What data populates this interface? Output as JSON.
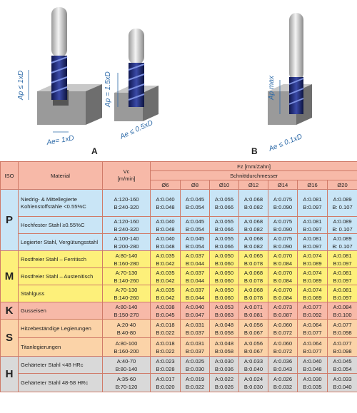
{
  "figure": {
    "label_a": "A",
    "label_b": "B",
    "tool1_ap": "Ap ≤ 1xD",
    "tool1_ae": "Ae= 1xD",
    "tool2_ap": "Ap = 1.5xD",
    "tool2_ae": "Ae ≤ 0.5xD",
    "tool3_ap": "Ap max",
    "tool3_ae": "Ae ≤ 0.1xD"
  },
  "table": {
    "iso_header": "ISO",
    "material_header": "Material",
    "vc_header": "Vc",
    "vc_unit": "[m/min]",
    "fz_header": "Fz [mm/Zahn]",
    "diameter_header": "Schnittdurchmesser",
    "diameters": [
      "Ø6",
      "Ø8",
      "Ø10",
      "Ø12",
      "Ø14",
      "Ø16",
      "Ø20"
    ],
    "groups": [
      {
        "iso": "P",
        "color": "#c9e5f6",
        "letter_color": "#222",
        "rows": [
          {
            "material": "Niedrig- & Mittellegierte Kohlenstoffstähle <0.55%C",
            "vc_a": "A:120-160",
            "vc_b": "B:240-320",
            "a": [
              "A:0.040",
              "A:0.045",
              "A:0.055",
              "A:0.068",
              "A:0.075",
              "A:0.081",
              "A:0.089"
            ],
            "b": [
              "B:0.048",
              "B:0.054",
              "B:0.066",
              "B:0.082",
              "B:0.090",
              "B:0.097",
              "B: 0.107"
            ]
          },
          {
            "material": "Hochfester Stahl ≥0.55%C",
            "vc_a": "A:120-160",
            "vc_b": "B:240-320",
            "a": [
              "A:0.040",
              "A:0.045",
              "A:0.055",
              "A:0.068",
              "A:0.075",
              "A:0.081",
              "A:0.089"
            ],
            "b": [
              "B:0.048",
              "B:0.054",
              "B:0.066",
              "B:0.082",
              "B:0.090",
              "B:0.097",
              "B: 0.107"
            ]
          },
          {
            "material": "Legierter Stahl, Vergütungsstahl",
            "vc_a": "A:100-140",
            "vc_b": "B:200-280",
            "a": [
              "A:0.040",
              "A:0.045",
              "A:0.055",
              "A:0.068",
              "A:0.075",
              "A:0.081",
              "A:0.089"
            ],
            "b": [
              "B:0.048",
              "B:0.054",
              "B:0.066",
              "B:0.082",
              "B:0.090",
              "B:0.097",
              "B: 0.107"
            ]
          }
        ]
      },
      {
        "iso": "M",
        "color": "#fdf07a",
        "letter_color": "#222",
        "rows": [
          {
            "material": "Rostfreier Stahl – Ferritisch",
            "vc_a": "A:80-140",
            "vc_b": "B:160-280",
            "a": [
              "A:0.035",
              "A:0.037",
              "A:0.050",
              "A:0.065",
              "A:0.070",
              "A:0.074",
              "A:0.081"
            ],
            "b": [
              "B:0.042",
              "B:0.044",
              "B:0.060",
              "B:0.078",
              "B:0.084",
              "B:0.089",
              "B:0.097"
            ]
          },
          {
            "material": "Rostfreier Stahl – Austenitisch",
            "vc_a": "A:70-130",
            "vc_b": "B:140-260",
            "a": [
              "A:0.035",
              "A:0.037",
              "A:0.050",
              "A:0.068",
              "A:0.070",
              "A:0.074",
              "A:0.081"
            ],
            "b": [
              "B:0.042",
              "B:0.044",
              "B:0.060",
              "B:0.078",
              "B:0.084",
              "B:0.089",
              "B:0.097"
            ]
          },
          {
            "material": "Stahlguss",
            "vc_a": "A:70-130",
            "vc_b": "B:140-260",
            "a": [
              "A:0.035",
              "A:0.037",
              "A:0.050",
              "A:0.068",
              "A:0.070",
              "A:0.074",
              "A:0.081"
            ],
            "b": [
              "B:0.042",
              "B:0.044",
              "B:0.060",
              "B:0.078",
              "B:0.084",
              "B:0.089",
              "B:0.097"
            ]
          }
        ]
      },
      {
        "iso": "K",
        "color": "#f7b9a8",
        "letter_color": "#222",
        "rows": [
          {
            "material": "Gusseisen",
            "vc_a": "A:80-140",
            "vc_b": "B:150-270",
            "a": [
              "A:0.038",
              "A:0.040",
              "A:0.053",
              "A:0.071",
              "A:0.073",
              "A:0.077",
              "A:0.084"
            ],
            "b": [
              "B:0.045",
              "B:0.047",
              "B:0.063",
              "B:0.081",
              "B:0.087",
              "B:0.092",
              "B:0.100"
            ]
          }
        ]
      },
      {
        "iso": "S",
        "color": "#fbd3a8",
        "letter_color": "#222",
        "rows": [
          {
            "material": "Hitzebeständige Legierungen",
            "vc_a": "A:20-40",
            "vc_b": "B:40-80",
            "a": [
              "A:0.018",
              "A:0.031",
              "A:0.048",
              "A:0.056",
              "A:0.060",
              "A:0.064",
              "A:0.077"
            ],
            "b": [
              "B:0.022",
              "B:0.037",
              "B:0.058",
              "B:0.067",
              "B:0.072",
              "B:0.077",
              "B:0.098"
            ]
          },
          {
            "material": "Titanlegierungen",
            "vc_a": "A:80-100",
            "vc_b": "B:160-200",
            "a": [
              "A:0.018",
              "A:0.031",
              "A:0.048",
              "A:0.056",
              "A:0.060",
              "A:0.064",
              "A:0.077"
            ],
            "b": [
              "B:0.022",
              "B:0.037",
              "B:0.058",
              "B:0.067",
              "B:0.072",
              "B:0.077",
              "B:0.098"
            ]
          }
        ]
      },
      {
        "iso": "H",
        "color": "#d9d9d9",
        "letter_color": "#222",
        "rows": [
          {
            "material": "Gehärteter Stahl <48 HRc",
            "vc_a": "A:40-70",
            "vc_b": "B:80-140",
            "a": [
              "A:0.023",
              "A:0.025",
              "A:0.030",
              "A:0.033",
              "A:0.036",
              "A:0.040",
              "A:0.045"
            ],
            "b": [
              "B:0.028",
              "B:0.030",
              "B:0.036",
              "B:0.040",
              "B:0.043",
              "B:0.048",
              "B:0.054"
            ]
          },
          {
            "material": "Gehärteter Stahl 48-58 HRc",
            "vc_a": "A:35-60",
            "vc_b": "B:70-120",
            "a": [
              "A:0.017",
              "A:0.019",
              "A:0.022",
              "A:0.024",
              "A:0.026",
              "A:0.030",
              "A:0.033"
            ],
            "b": [
              "B:0.020",
              "B:0.022",
              "B:0.026",
              "B:0.030",
              "B:0.032",
              "B:0.035",
              "B:0.040"
            ]
          }
        ]
      }
    ]
  }
}
